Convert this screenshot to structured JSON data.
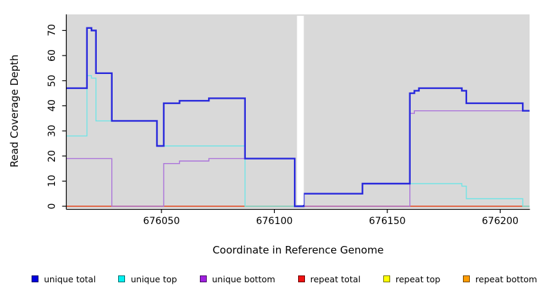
{
  "figure": {
    "panel_background": "#d9d9d9",
    "background": "#ffffff"
  },
  "axes": {
    "x": {
      "label": "Coordinate in Reference Genome",
      "ticks": [
        676050,
        676100,
        676150,
        676200
      ],
      "range": [
        676008,
        676213
      ]
    },
    "y": {
      "label": "Read Coverage Depth",
      "ticks": [
        0,
        10,
        20,
        30,
        40,
        50,
        60,
        70
      ],
      "range": [
        0,
        76.4
      ]
    }
  },
  "chart_data": {
    "type": "line",
    "style": "step",
    "title": "",
    "xlabel": "Coordinate in Reference Genome",
    "ylabel": "Read Coverage Depth",
    "xlim": [
      676008,
      676213
    ],
    "ylim": [
      0,
      76.4
    ],
    "grid": false,
    "legend_position": "bottom",
    "gap_region": {
      "start": 676110,
      "end": 676113,
      "color": "#ffffff"
    },
    "series": [
      {
        "name": "unique total",
        "color": "#2828dc",
        "width": 2.4,
        "segments": [
          [
            676008,
            676017,
            47
          ],
          [
            676017,
            676019,
            71
          ],
          [
            676019,
            676021,
            70
          ],
          [
            676021,
            676028,
            53
          ],
          [
            676028,
            676048,
            34
          ],
          [
            676048,
            676051,
            24
          ],
          [
            676051,
            676058,
            41
          ],
          [
            676058,
            676071,
            42
          ],
          [
            676071,
            676087,
            43
          ],
          [
            676087,
            676109,
            19
          ],
          [
            676109,
            676113,
            0
          ],
          [
            676113,
            676139,
            5
          ],
          [
            676139,
            676160,
            9
          ],
          [
            676160,
            676162,
            45
          ],
          [
            676162,
            676164,
            46
          ],
          [
            676164,
            676183,
            47
          ],
          [
            676183,
            676185,
            46
          ],
          [
            676185,
            676210,
            41
          ],
          [
            676210,
            676213,
            38
          ]
        ]
      },
      {
        "name": "unique top",
        "color": "#72e4e6",
        "width": 1.4,
        "segments": [
          [
            676008,
            676017,
            28
          ],
          [
            676017,
            676019,
            52
          ],
          [
            676019,
            676021,
            51
          ],
          [
            676021,
            676048,
            34
          ],
          [
            676048,
            676087,
            24
          ],
          [
            676087,
            676113,
            0
          ],
          [
            676113,
            676139,
            5
          ],
          [
            676139,
            676183,
            9
          ],
          [
            676183,
            676185,
            8
          ],
          [
            676185,
            676210,
            3
          ],
          [
            676210,
            676213,
            0
          ]
        ]
      },
      {
        "name": "unique bottom",
        "color": "#ab73da",
        "width": 1.4,
        "segments": [
          [
            676008,
            676028,
            19
          ],
          [
            676028,
            676051,
            0
          ],
          [
            676051,
            676058,
            17
          ],
          [
            676058,
            676071,
            18
          ],
          [
            676071,
            676109,
            19
          ],
          [
            676109,
            676160,
            0
          ],
          [
            676160,
            676162,
            37
          ],
          [
            676162,
            676213,
            38
          ]
        ]
      },
      {
        "name": "repeat total",
        "color": "#d84a54",
        "width": 1.4,
        "segments": [
          [
            676008,
            676213,
            0
          ]
        ]
      },
      {
        "name": "repeat top",
        "color": "#f2ef37",
        "width": 1.4,
        "segments": [
          [
            676008,
            676213,
            0
          ]
        ]
      },
      {
        "name": "repeat bottom",
        "color": "#ff9b1e",
        "width": 2,
        "segments": [
          [
            676008,
            676213,
            0
          ]
        ]
      }
    ],
    "legend": [
      {
        "label": "unique total",
        "color": "#0000e0"
      },
      {
        "label": "unique top",
        "color": "#00f0f0"
      },
      {
        "label": "unique bottom",
        "color": "#a020e0"
      },
      {
        "label": "repeat total",
        "color": "#ee1111"
      },
      {
        "label": "repeat top",
        "color": "#ffff00"
      },
      {
        "label": "repeat bottom",
        "color": "#ff9c00"
      }
    ]
  }
}
